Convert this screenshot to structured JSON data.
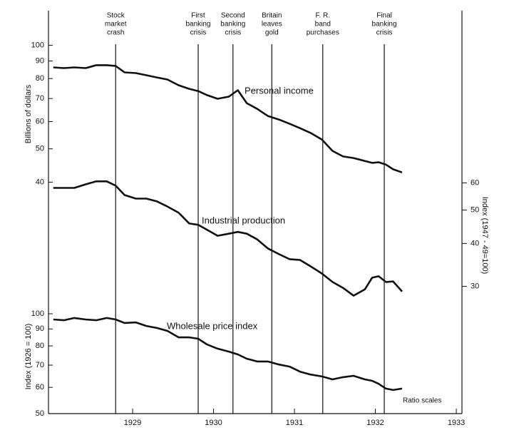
{
  "chart_data": {
    "type": "line",
    "log_scale": true,
    "ylabel": "Billions of dollars",
    "y2label": "Index (1947 - 49=100)",
    "y3label": "Index (1926 = 100)",
    "annotation": "Ratio scales",
    "xlim": [
      1927.96,
      1933.07
    ],
    "xticks": [
      1929,
      1930,
      1931,
      1932,
      1933
    ],
    "ylim": [
      8.5,
      126
    ],
    "yticks": [
      40,
      50,
      60,
      70,
      80,
      90,
      100
    ],
    "y2lim": [
      12.8,
      190
    ],
    "y2ticks": [
      30,
      40,
      50,
      60
    ],
    "y3lim": [
      50,
      820
    ],
    "y3ticks": [
      50,
      60,
      70,
      80,
      90,
      100
    ],
    "events": [
      {
        "x": 1928.79,
        "label": [
          "Stock",
          "market",
          "crash"
        ]
      },
      {
        "x": 1929.81,
        "label": [
          "First",
          "banking",
          "crisis"
        ]
      },
      {
        "x": 1930.24,
        "label": [
          "Second",
          "banking",
          "crisis"
        ]
      },
      {
        "x": 1930.72,
        "label": [
          "Britain",
          "leaves",
          "gold"
        ]
      },
      {
        "x": 1931.35,
        "label": [
          "F. R.",
          "band",
          "purchases"
        ]
      },
      {
        "x": 1932.11,
        "label": [
          "Final",
          "banking",
          "crisis"
        ]
      }
    ],
    "x": [
      1928.02,
      1928.15,
      1928.28,
      1928.42,
      1928.55,
      1928.68,
      1928.79,
      1928.9,
      1929.04,
      1929.17,
      1929.3,
      1929.43,
      1929.57,
      1929.7,
      1929.81,
      1929.92,
      1930.05,
      1930.19,
      1930.3,
      1930.41,
      1930.54,
      1930.67,
      1930.81,
      1930.94,
      1931.07,
      1931.2,
      1931.34,
      1931.47,
      1931.6,
      1931.73,
      1931.87,
      1931.96,
      1932.04,
      1932.13,
      1932.22,
      1932.33
    ],
    "series": [
      {
        "name": "Personal income",
        "color": "#111111",
        "axis": "y",
        "values": [
          86.2,
          85.8,
          86.2,
          85.8,
          87.5,
          87.5,
          87.1,
          83.4,
          83.0,
          81.8,
          80.6,
          79.5,
          76.5,
          74.7,
          73.6,
          71.6,
          69.9,
          70.9,
          74.0,
          67.9,
          65.3,
          62.3,
          60.8,
          59.1,
          57.4,
          55.6,
          53.2,
          49.3,
          47.5,
          47.0,
          46.1,
          45.5,
          45.7,
          45.0,
          43.6,
          42.7
        ]
      },
      {
        "name": "Industrial production",
        "color": "#111111",
        "axis": "y2",
        "values": [
          58.0,
          58.0,
          58.0,
          59.4,
          60.6,
          60.6,
          58.9,
          55.3,
          54.0,
          54.0,
          53.0,
          51.2,
          49.1,
          45.7,
          45.3,
          43.8,
          42.1,
          42.7,
          43.2,
          42.7,
          41.1,
          38.7,
          37.2,
          36.0,
          35.8,
          34.3,
          32.7,
          30.9,
          29.7,
          28.2,
          29.4,
          31.8,
          32.1,
          30.9,
          31.0,
          29.0
        ]
      },
      {
        "name": "Wholesale price index",
        "color": "#111111",
        "axis": "y3",
        "values": [
          96.1,
          95.6,
          97.1,
          96.1,
          95.6,
          97.1,
          96.1,
          93.8,
          94.2,
          91.9,
          90.6,
          88.8,
          84.9,
          84.9,
          84.1,
          80.8,
          78.5,
          76.9,
          75.4,
          73.2,
          71.8,
          71.8,
          70.3,
          69.3,
          66.9,
          65.6,
          64.7,
          63.4,
          64.4,
          65.0,
          63.4,
          62.8,
          61.5,
          59.5,
          58.9,
          59.5
        ]
      }
    ]
  }
}
